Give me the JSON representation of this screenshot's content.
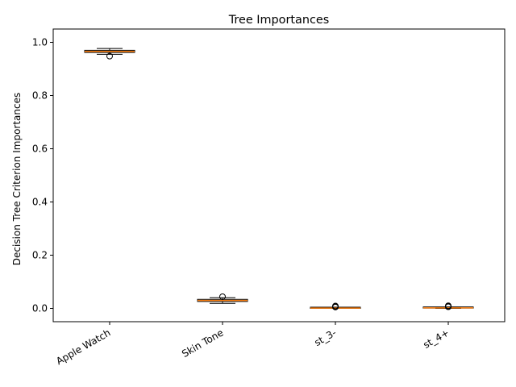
{
  "chart_data": {
    "type": "box",
    "title": "Tree Importances",
    "xlabel": "",
    "ylabel": "Decision Tree Criterion Importances",
    "ylim": [
      -0.05,
      1.05
    ],
    "yticks": [
      0.0,
      0.2,
      0.4,
      0.6,
      0.8,
      1.0
    ],
    "ytick_labels": [
      "0.0",
      "0.2",
      "0.4",
      "0.6",
      "0.8",
      "1.0"
    ],
    "grid": false,
    "categories": [
      "Apple Watch",
      "Skin Tone",
      "st_3-",
      "st_4+"
    ],
    "boxes": [
      {
        "whisker_low": 0.955,
        "q1": 0.962,
        "median": 0.966,
        "q3": 0.97,
        "whisker_high": 0.977,
        "outliers": [
          0.948
        ]
      },
      {
        "whisker_low": 0.019,
        "q1": 0.026,
        "median": 0.03,
        "q3": 0.034,
        "whisker_high": 0.04,
        "outliers": [
          0.044
        ]
      },
      {
        "whisker_low": 0.0,
        "q1": 0.0,
        "median": 0.001,
        "q3": 0.002,
        "whisker_high": 0.003,
        "outliers": [
          0.005,
          0.007,
          0.009
        ]
      },
      {
        "whisker_low": 0.0,
        "q1": 0.001,
        "median": 0.002,
        "q3": 0.003,
        "whisker_high": 0.004,
        "outliers": [
          0.006,
          0.008,
          0.01
        ]
      }
    ],
    "colors": {
      "median": "#ff7f0e",
      "box": "#000000",
      "axes": "#000000"
    }
  }
}
